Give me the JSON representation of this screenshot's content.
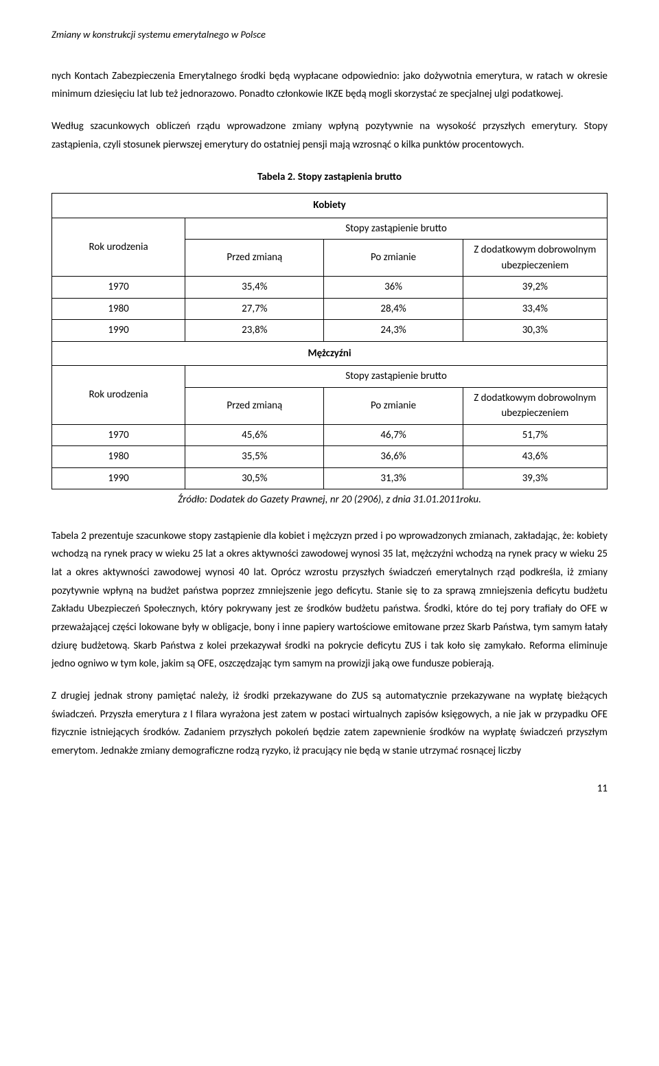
{
  "header": {
    "running_title": "Zmiany w konstrukcji systemu emerytalnego w Polsce"
  },
  "paragraphs": {
    "p1": "nych Kontach Zabezpieczenia Emerytalnego środki będą wypłacane odpowiednio: jako dożywotnia emerytura, w ratach w okresie minimum dziesięciu lat lub też jednorazowo. Ponadto członkowie IKZE będą mogli skorzystać ze specjalnej ulgi podatkowej.",
    "p2": "Według szacunkowych obliczeń rządu wprowadzone zmiany wpłyną pozytywnie na wysokość przyszłych emerytury. Stopy zastąpienia, czyli stosunek pierwszej emerytury do ostatniej pensji mają wzrosnąć o kilka punktów procentowych.",
    "p3": "Tabela 2 prezentuje szacunkowe stopy zastąpienie dla kobiet i mężczyzn przed i po wprowadzonych zmianach, zakładając, że: kobiety wchodzą na rynek pracy w wieku 25 lat a okres aktywności zawodowej wynosi 35 lat, mężczyźni wchodzą na rynek pracy w wieku 25 lat a okres aktywności zawodowej wynosi 40 lat. Oprócz wzrostu przyszłych świadczeń emerytalnych rząd podkreśla, iż zmiany pozytywnie wpłyną na budżet państwa poprzez zmniejszenie jego deficytu. Stanie się to za sprawą zmniejszenia deficytu budżetu Zakładu Ubezpieczeń Społecznych, który pokrywany jest ze środków budżetu państwa. Środki, które do tej pory trafiały do OFE w przeważającej części lokowane były w obligacje, bony i inne papiery wartościowe emitowane przez Skarb Państwa, tym samym łatały dziurę budżetową. Skarb Państwa z kolei przekazywał środki na pokrycie deficytu ZUS i tak koło się zamykało. Reforma eliminuje jedno ogniwo w tym kole, jakim są OFE, oszczędzając tym samym na prowizji jaką owe fundusze pobierają.",
    "p4": "Z drugiej jednak strony pamiętać należy, iż środki przekazywane do ZUS są automatycznie przekazywane na wypłatę bieżących świadczeń. Przyszła emerytura z I filara wyrażona jest zatem w postaci wirtualnych zapisów księgowych, a nie jak w przypadku OFE fizycznie istniejących środków. Zadaniem przyszłych pokoleń będzie zatem zapewnienie środków na wypłatę świadczeń przyszłym emerytom. Jednakże zmiany demograficzne rodzą ryzyko, iż pracujący nie będą w stanie utrzymać rosnącej liczby"
  },
  "table": {
    "title": "Tabela 2. Stopy zastąpienia brutto",
    "section_women": "Kobiety",
    "section_men": "Mężczyźni",
    "rowhead": "Rok urodzenia",
    "superhead": "Stopy zastąpienie brutto",
    "col_before": "Przed zmianą",
    "col_after": "Po zmianie",
    "col_extra": "Z dodatkowym dobrowolnym ubezpieczeniem",
    "women": {
      "r0": {
        "year": "1970",
        "before": "35,4%",
        "after": "36%",
        "extra": "39,2%"
      },
      "r1": {
        "year": "1980",
        "before": "27,7%",
        "after": "28,4%",
        "extra": "33,4%"
      },
      "r2": {
        "year": "1990",
        "before": "23,8%",
        "after": "24,3%",
        "extra": "30,3%"
      }
    },
    "men": {
      "r0": {
        "year": "1970",
        "before": "45,6%",
        "after": "46,7%",
        "extra": "51,7%"
      },
      "r1": {
        "year": "1980",
        "before": "35,5%",
        "after": "36,6%",
        "extra": "43,6%"
      },
      "r2": {
        "year": "1990",
        "before": "30,5%",
        "after": "31,3%",
        "extra": "39,3%"
      }
    },
    "source": "Źródło: Dodatek do Gazety Prawnej, nr 20 (2906), z dnia 31.01.2011roku."
  },
  "page_number": "11"
}
